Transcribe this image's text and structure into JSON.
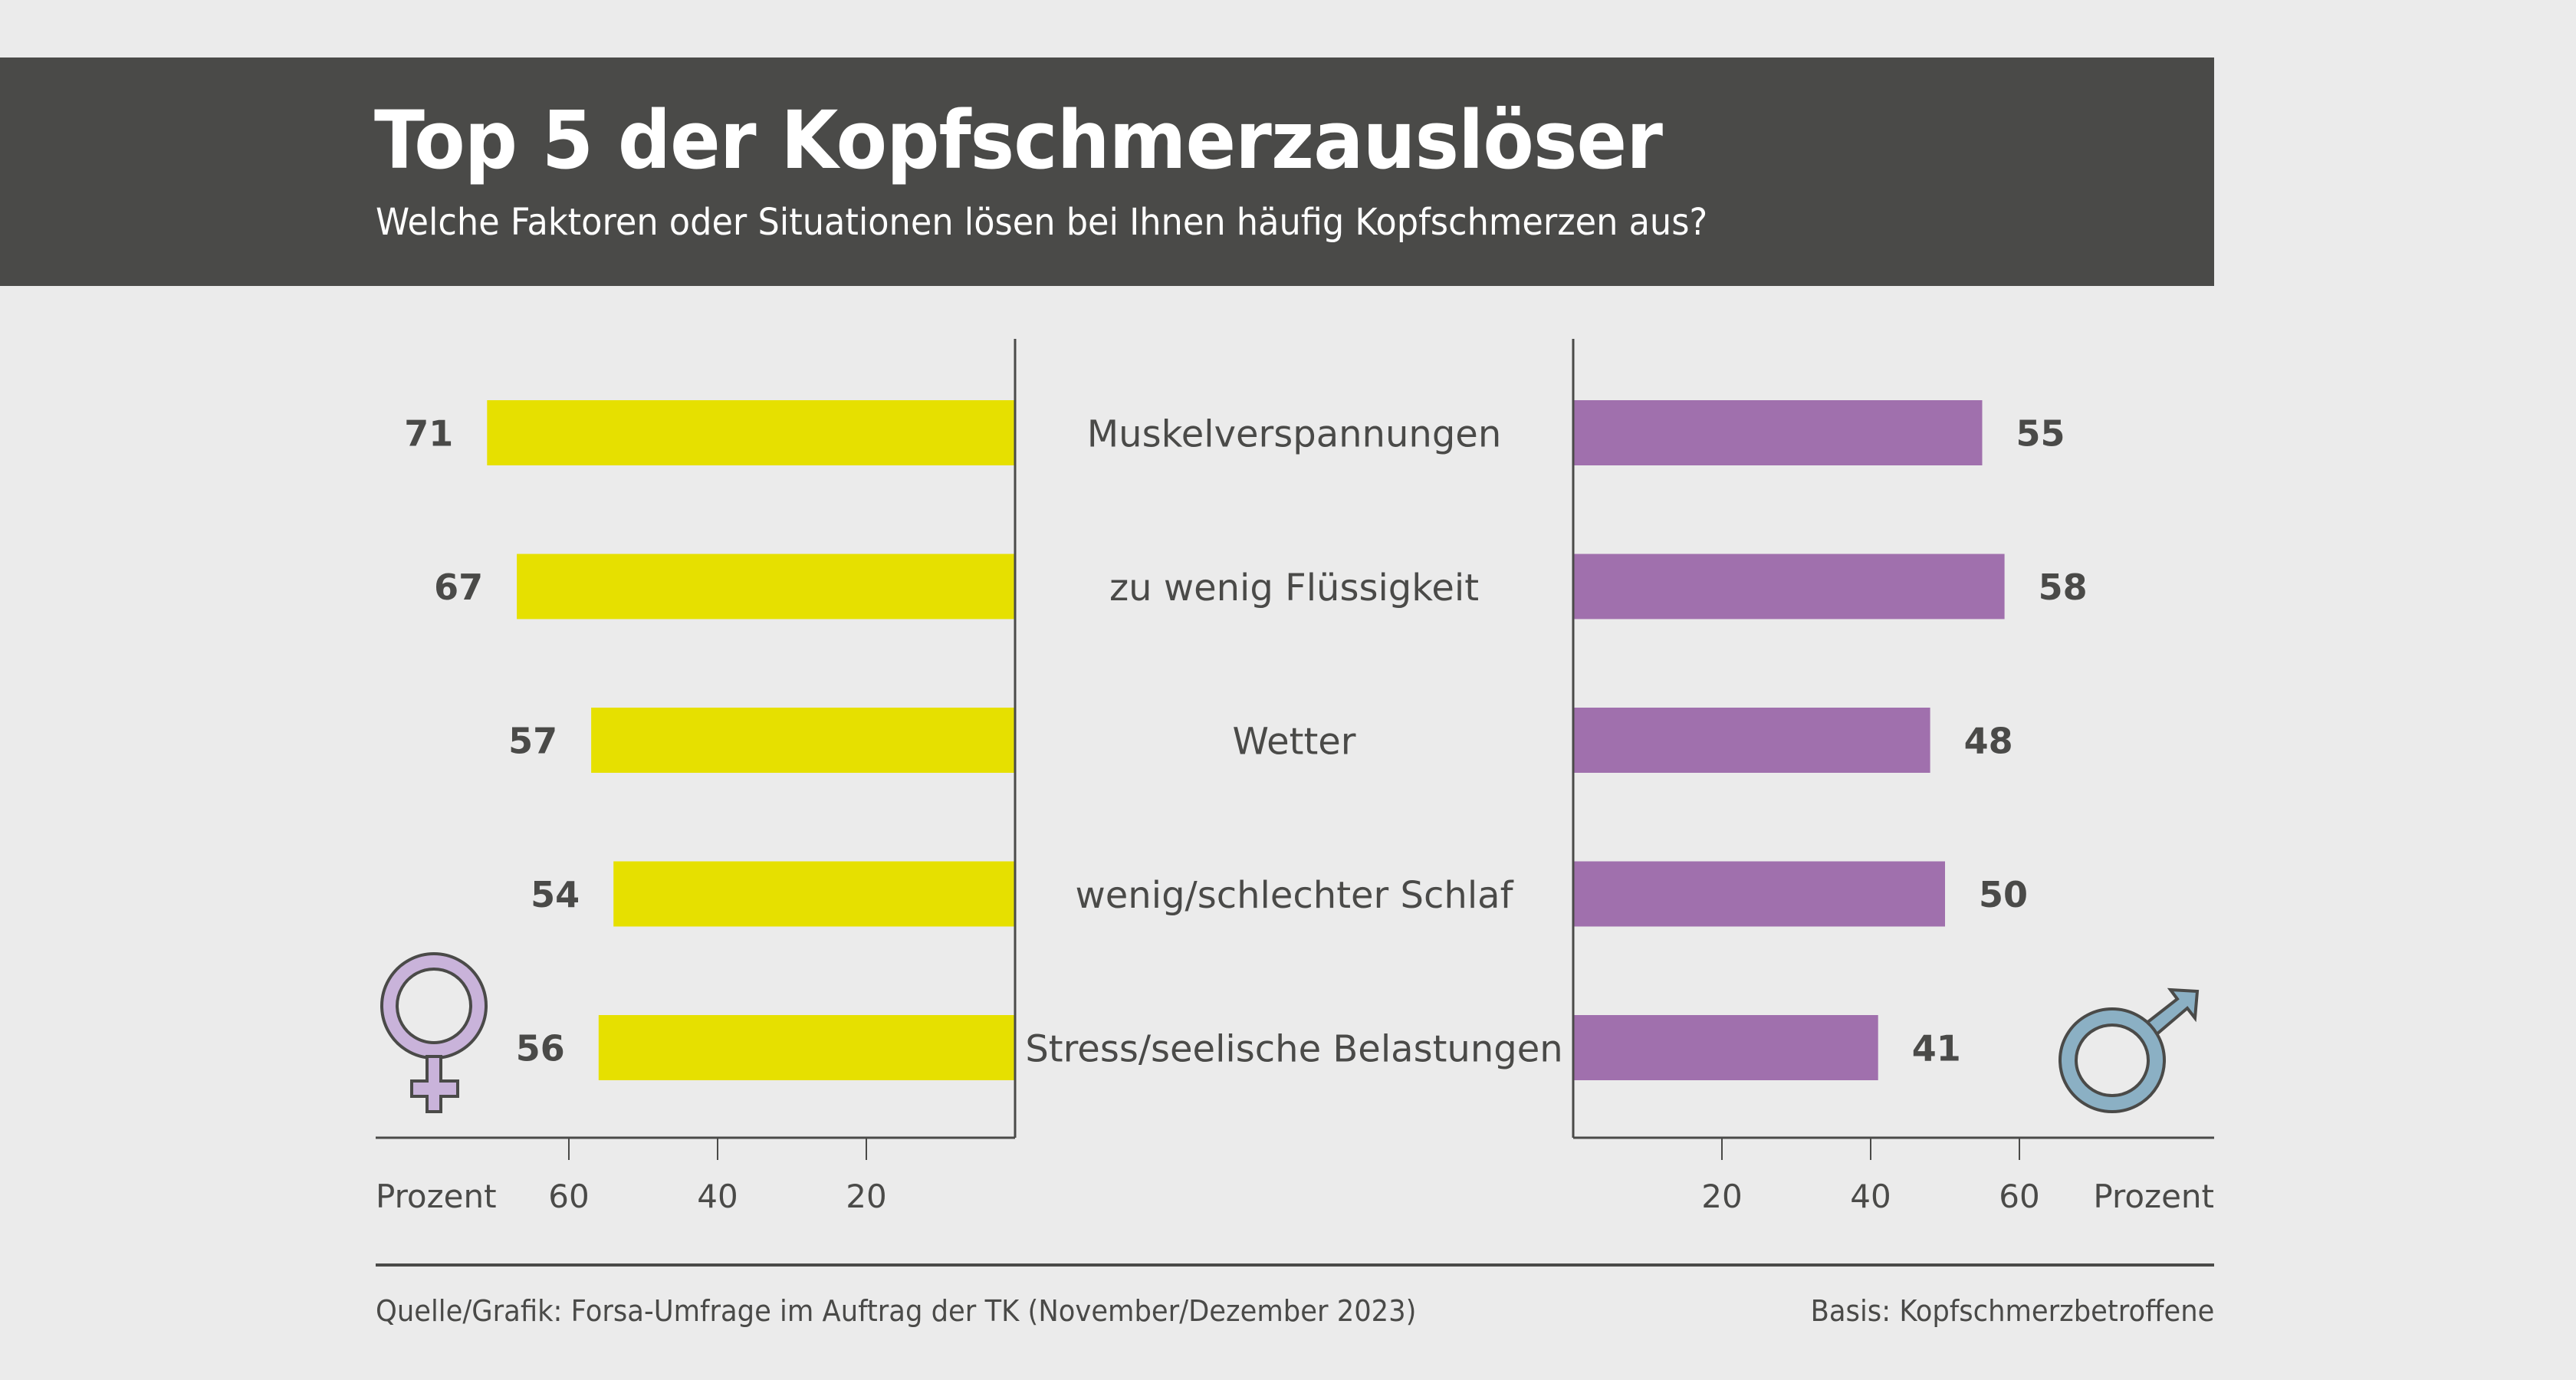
{
  "header": {
    "title": "Top 5 der Kopfschmerzauslöser",
    "subtitle": "Welche Faktoren oder Situationen lösen bei Ihnen häufig Kopfschmerzen aus?"
  },
  "footer": {
    "source": "Quelle/Grafik: Forsa-Umfrage im Auftrag der TK (November/Dezember 2023)",
    "basis": "Basis: Kopfschmerzbetroffene"
  },
  "colors": {
    "women": "#e6e000",
    "men": "#a070ad",
    "female_icon": "#c9b3da",
    "male_icon": "#8bb0c4",
    "text": "#4a4a48",
    "header_bg": "#4a4a48",
    "background": "#ebebeb"
  },
  "chart_data": {
    "type": "bar",
    "orientation": "horizontal-butterfly",
    "title": "Top 5 der Kopfschmerzauslöser",
    "subtitle": "Welche Faktoren oder Situationen lösen bei Ihnen häufig Kopfschmerzen aus?",
    "categories": [
      "Muskelverspannungen",
      "zu wenig Flüssigkeit",
      "Wetter",
      "wenig/schlechter Schlaf",
      "Stress/seelische Belastungen"
    ],
    "series": [
      {
        "name": "Frauen",
        "icon": "female-symbol",
        "side": "left",
        "values": [
          71,
          67,
          57,
          54,
          56
        ]
      },
      {
        "name": "Männer",
        "icon": "male-symbol",
        "side": "right",
        "values": [
          55,
          58,
          48,
          50,
          41
        ]
      }
    ],
    "xlabel": "Prozent",
    "left_axis": {
      "ticks": [
        60,
        40,
        20
      ],
      "label": "Prozent",
      "range": [
        0,
        80
      ]
    },
    "right_axis": {
      "ticks": [
        20,
        40,
        60
      ],
      "label": "Prozent",
      "range": [
        0,
        80
      ]
    },
    "grid": false,
    "data_labels": true
  }
}
